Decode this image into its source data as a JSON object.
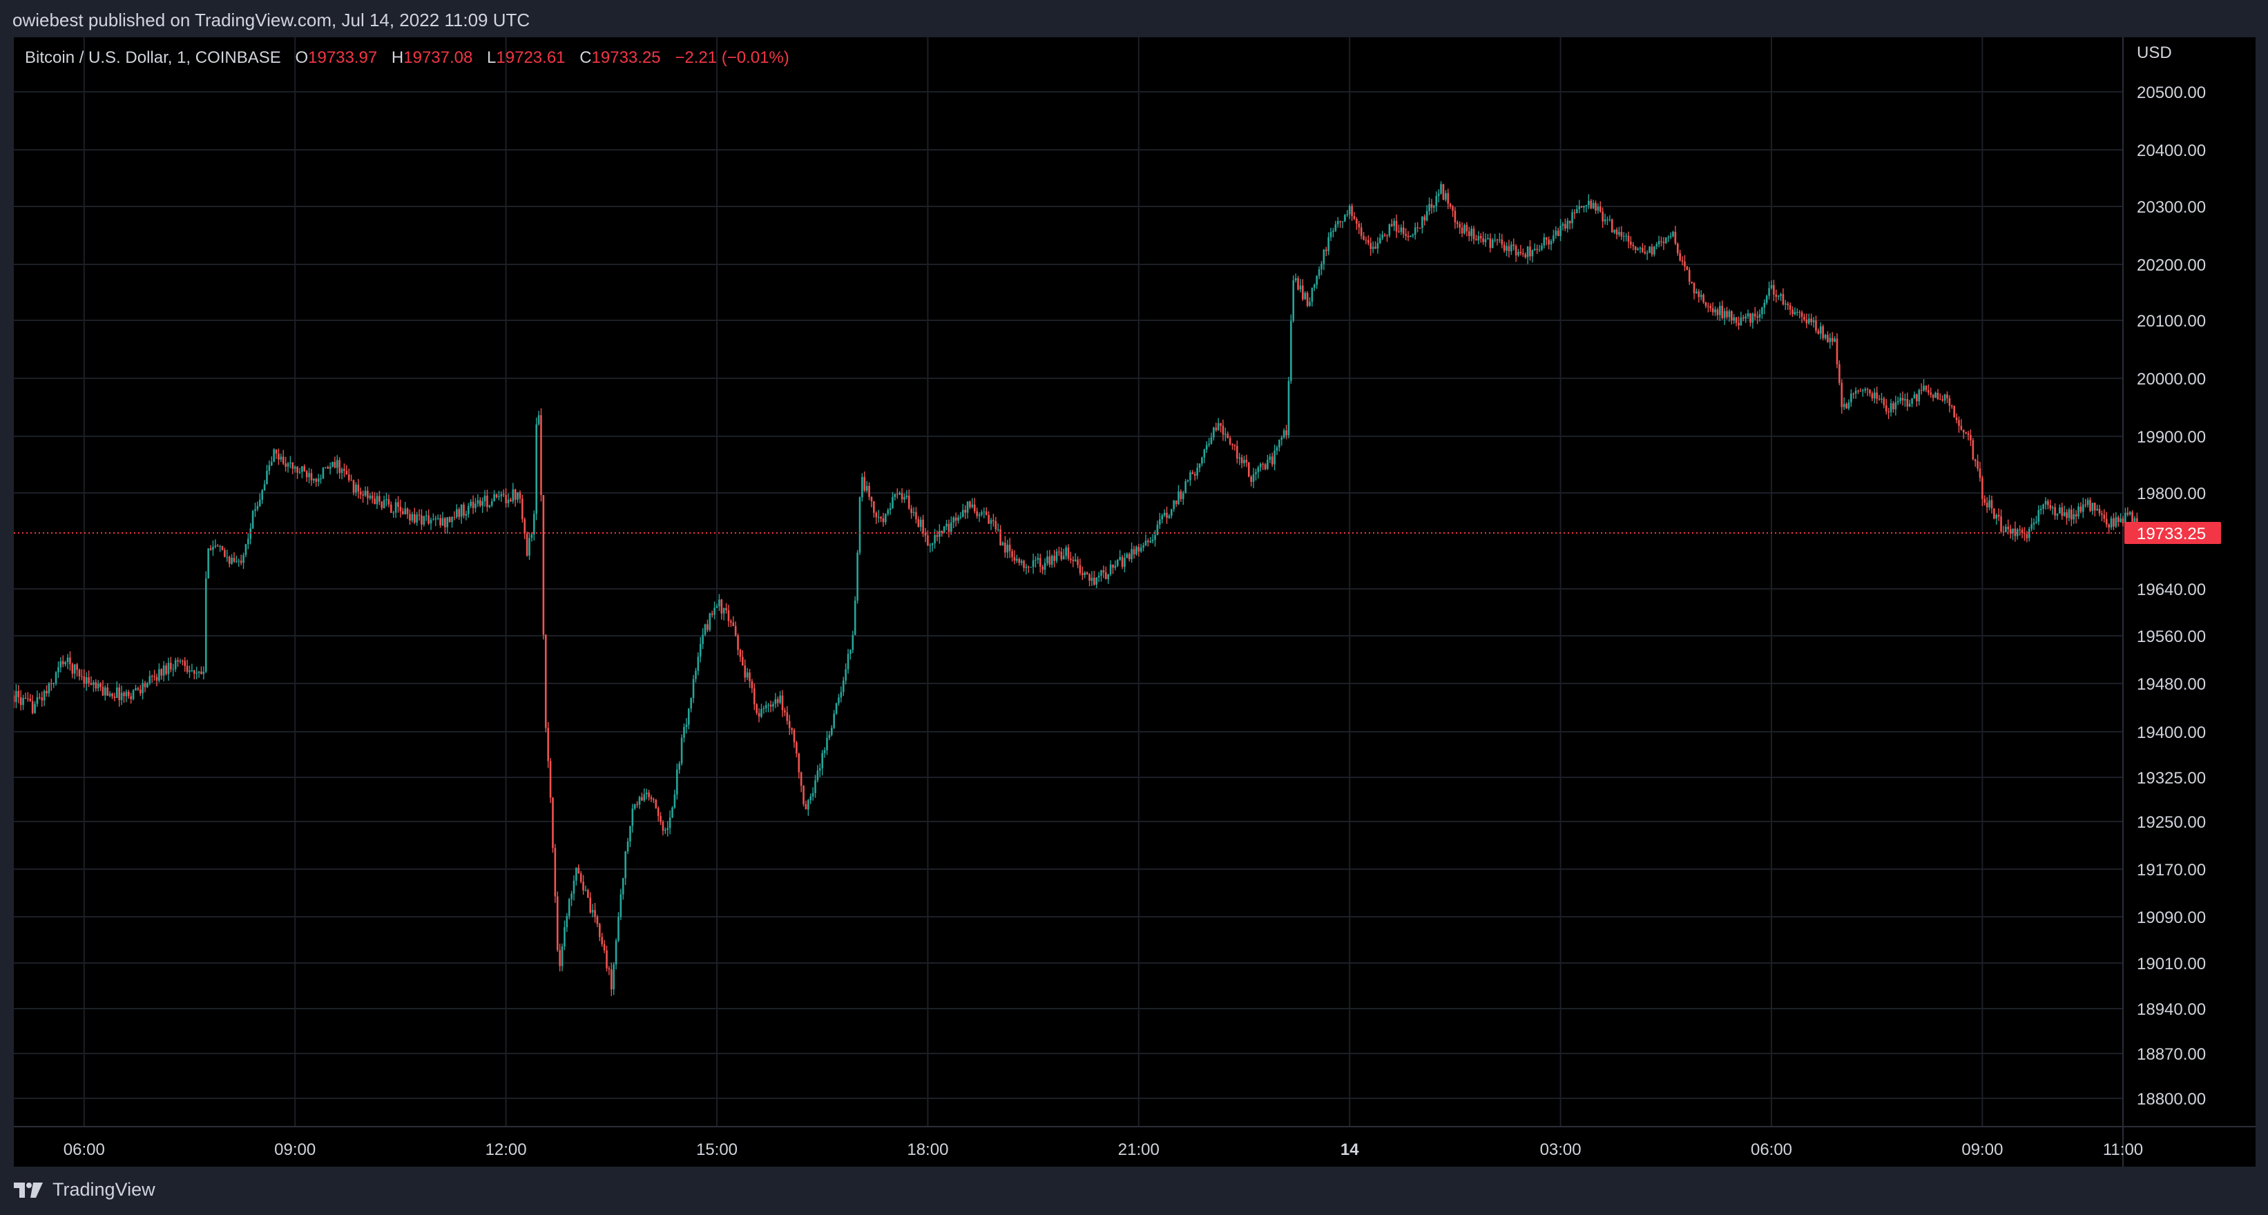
{
  "header": {
    "publisher_text": "owiebest published on TradingView.com, Jul 14, 2022 11:09 UTC"
  },
  "legend": {
    "symbol": "Bitcoin / U.S. Dollar, 1, COINBASE",
    "open_label": "O",
    "open": "19733.97",
    "high_label": "H",
    "high": "19737.08",
    "low_label": "L",
    "low": "19723.61",
    "close_label": "C",
    "close": "19733.25",
    "change": "−2.21 (−0.01%)"
  },
  "footer": {
    "brand": "TradingView",
    "logo_icon": "tradingview-logo-icon"
  },
  "colors": {
    "up": "#26a69a",
    "down": "#ef5350",
    "background": "#000000",
    "frame": "#1e222d",
    "grid": "#1c1f26",
    "text": "#d1d4dc",
    "last_price_tag": "#f23645"
  },
  "chart_data": {
    "type": "candlestick",
    "symbol": "Bitcoin / U.S. Dollar",
    "interval": "1",
    "exchange": "COINBASE",
    "currency_label": "USD",
    "grid": true,
    "last_price": 19733.25,
    "last_price_label": "19733.25",
    "y_ticks": [
      "20500.00",
      "20400.00",
      "20300.00",
      "20200.00",
      "20100.00",
      "20000.00",
      "19900.00",
      "19800.00",
      "19640.00",
      "19560.00",
      "19480.00",
      "19400.00",
      "19325.00",
      "19250.00",
      "19170.00",
      "19090.00",
      "19010.00",
      "18940.00",
      "18870.00",
      "18800.00"
    ],
    "y_tick_values": [
      20500,
      20400,
      20300,
      20200,
      20100,
      20000,
      19900,
      19800,
      19640,
      19560,
      19480,
      19400,
      19325,
      19250,
      19170,
      19090,
      19010,
      18940,
      18870,
      18800
    ],
    "x_ticks": [
      "06:00",
      "09:00",
      "12:00",
      "15:00",
      "18:00",
      "21:00",
      "14",
      "03:00",
      "06:00",
      "09:00",
      "11:00"
    ],
    "x_tick_bold": [
      false,
      false,
      false,
      false,
      false,
      false,
      true,
      false,
      false,
      false,
      false
    ],
    "x_tick_hours": [
      6,
      9,
      12,
      15,
      18,
      21,
      24,
      27,
      30,
      33,
      35
    ],
    "x_range_hours": [
      5,
      35.5
    ],
    "price_path": [
      {
        "t": 5.0,
        "p": 19460
      },
      {
        "t": 5.25,
        "p": 19440
      },
      {
        "t": 5.5,
        "p": 19470
      },
      {
        "t": 5.7,
        "p": 19520
      },
      {
        "t": 5.9,
        "p": 19500
      },
      {
        "t": 6.2,
        "p": 19470
      },
      {
        "t": 6.6,
        "p": 19460
      },
      {
        "t": 6.9,
        "p": 19480
      },
      {
        "t": 7.2,
        "p": 19510
      },
      {
        "t": 7.4,
        "p": 19520
      },
      {
        "t": 7.6,
        "p": 19490
      },
      {
        "t": 7.7,
        "p": 19500
      },
      {
        "t": 7.75,
        "p": 19720
      },
      {
        "t": 7.95,
        "p": 19700
      },
      {
        "t": 8.2,
        "p": 19680
      },
      {
        "t": 8.4,
        "p": 19760
      },
      {
        "t": 8.7,
        "p": 19870
      },
      {
        "t": 9.0,
        "p": 19840
      },
      {
        "t": 9.3,
        "p": 19830
      },
      {
        "t": 9.6,
        "p": 19850
      },
      {
        "t": 9.9,
        "p": 19800
      },
      {
        "t": 10.3,
        "p": 19780
      },
      {
        "t": 10.7,
        "p": 19760
      },
      {
        "t": 11.1,
        "p": 19750
      },
      {
        "t": 11.5,
        "p": 19780
      },
      {
        "t": 11.9,
        "p": 19790
      },
      {
        "t": 12.2,
        "p": 19800
      },
      {
        "t": 12.3,
        "p": 19700
      },
      {
        "t": 12.4,
        "p": 19760
      },
      {
        "t": 12.45,
        "p": 19990
      },
      {
        "t": 12.5,
        "p": 19800
      },
      {
        "t": 12.55,
        "p": 19450
      },
      {
        "t": 12.65,
        "p": 19250
      },
      {
        "t": 12.75,
        "p": 19000
      },
      {
        "t": 12.85,
        "p": 19080
      },
      {
        "t": 13.0,
        "p": 19180
      },
      {
        "t": 13.2,
        "p": 19100
      },
      {
        "t": 13.35,
        "p": 19060
      },
      {
        "t": 13.5,
        "p": 18970
      },
      {
        "t": 13.65,
        "p": 19150
      },
      {
        "t": 13.8,
        "p": 19270
      },
      {
        "t": 14.0,
        "p": 19300
      },
      {
        "t": 14.3,
        "p": 19230
      },
      {
        "t": 14.5,
        "p": 19380
      },
      {
        "t": 14.8,
        "p": 19560
      },
      {
        "t": 15.0,
        "p": 19620
      },
      {
        "t": 15.2,
        "p": 19580
      },
      {
        "t": 15.4,
        "p": 19500
      },
      {
        "t": 15.6,
        "p": 19430
      },
      {
        "t": 15.9,
        "p": 19450
      },
      {
        "t": 16.1,
        "p": 19390
      },
      {
        "t": 16.25,
        "p": 19260
      },
      {
        "t": 16.5,
        "p": 19360
      },
      {
        "t": 16.8,
        "p": 19480
      },
      {
        "t": 16.95,
        "p": 19580
      },
      {
        "t": 17.05,
        "p": 19830
      },
      {
        "t": 17.3,
        "p": 19750
      },
      {
        "t": 17.6,
        "p": 19800
      },
      {
        "t": 17.8,
        "p": 19770
      },
      {
        "t": 18.0,
        "p": 19720
      },
      {
        "t": 18.3,
        "p": 19740
      },
      {
        "t": 18.6,
        "p": 19780
      },
      {
        "t": 18.9,
        "p": 19750
      },
      {
        "t": 19.2,
        "p": 19690
      },
      {
        "t": 19.6,
        "p": 19680
      },
      {
        "t": 20.0,
        "p": 19700
      },
      {
        "t": 20.3,
        "p": 19650
      },
      {
        "t": 20.6,
        "p": 19670
      },
      {
        "t": 20.9,
        "p": 19700
      },
      {
        "t": 21.2,
        "p": 19730
      },
      {
        "t": 21.5,
        "p": 19780
      },
      {
        "t": 21.8,
        "p": 19840
      },
      {
        "t": 22.1,
        "p": 19920
      },
      {
        "t": 22.3,
        "p": 19890
      },
      {
        "t": 22.6,
        "p": 19830
      },
      {
        "t": 22.9,
        "p": 19860
      },
      {
        "t": 23.1,
        "p": 19910
      },
      {
        "t": 23.2,
        "p": 20180
      },
      {
        "t": 23.4,
        "p": 20130
      },
      {
        "t": 23.7,
        "p": 20240
      },
      {
        "t": 24.0,
        "p": 20300
      },
      {
        "t": 24.3,
        "p": 20220
      },
      {
        "t": 24.6,
        "p": 20270
      },
      {
        "t": 24.9,
        "p": 20250
      },
      {
        "t": 25.3,
        "p": 20330
      },
      {
        "t": 25.6,
        "p": 20260
      },
      {
        "t": 25.9,
        "p": 20240
      },
      {
        "t": 26.2,
        "p": 20230
      },
      {
        "t": 26.5,
        "p": 20220
      },
      {
        "t": 26.8,
        "p": 20240
      },
      {
        "t": 27.1,
        "p": 20270
      },
      {
        "t": 27.4,
        "p": 20310
      },
      {
        "t": 27.7,
        "p": 20270
      },
      {
        "t": 28.0,
        "p": 20230
      },
      {
        "t": 28.3,
        "p": 20220
      },
      {
        "t": 28.6,
        "p": 20250
      },
      {
        "t": 28.9,
        "p": 20150
      },
      {
        "t": 29.2,
        "p": 20120
      },
      {
        "t": 29.5,
        "p": 20100
      },
      {
        "t": 29.8,
        "p": 20110
      },
      {
        "t": 30.0,
        "p": 20160
      },
      {
        "t": 30.3,
        "p": 20120
      },
      {
        "t": 30.6,
        "p": 20090
      },
      {
        "t": 30.9,
        "p": 20060
      },
      {
        "t": 31.0,
        "p": 19950
      },
      {
        "t": 31.3,
        "p": 19990
      },
      {
        "t": 31.6,
        "p": 19950
      },
      {
        "t": 31.9,
        "p": 19960
      },
      {
        "t": 32.2,
        "p": 19980
      },
      {
        "t": 32.5,
        "p": 19960
      },
      {
        "t": 32.8,
        "p": 19900
      },
      {
        "t": 33.0,
        "p": 19800
      },
      {
        "t": 33.3,
        "p": 19740
      },
      {
        "t": 33.6,
        "p": 19730
      },
      {
        "t": 33.9,
        "p": 19780
      },
      {
        "t": 34.2,
        "p": 19760
      },
      {
        "t": 34.5,
        "p": 19780
      },
      {
        "t": 34.8,
        "p": 19750
      },
      {
        "t": 35.1,
        "p": 19760
      },
      {
        "t": 35.25,
        "p": 19733.25
      }
    ]
  }
}
